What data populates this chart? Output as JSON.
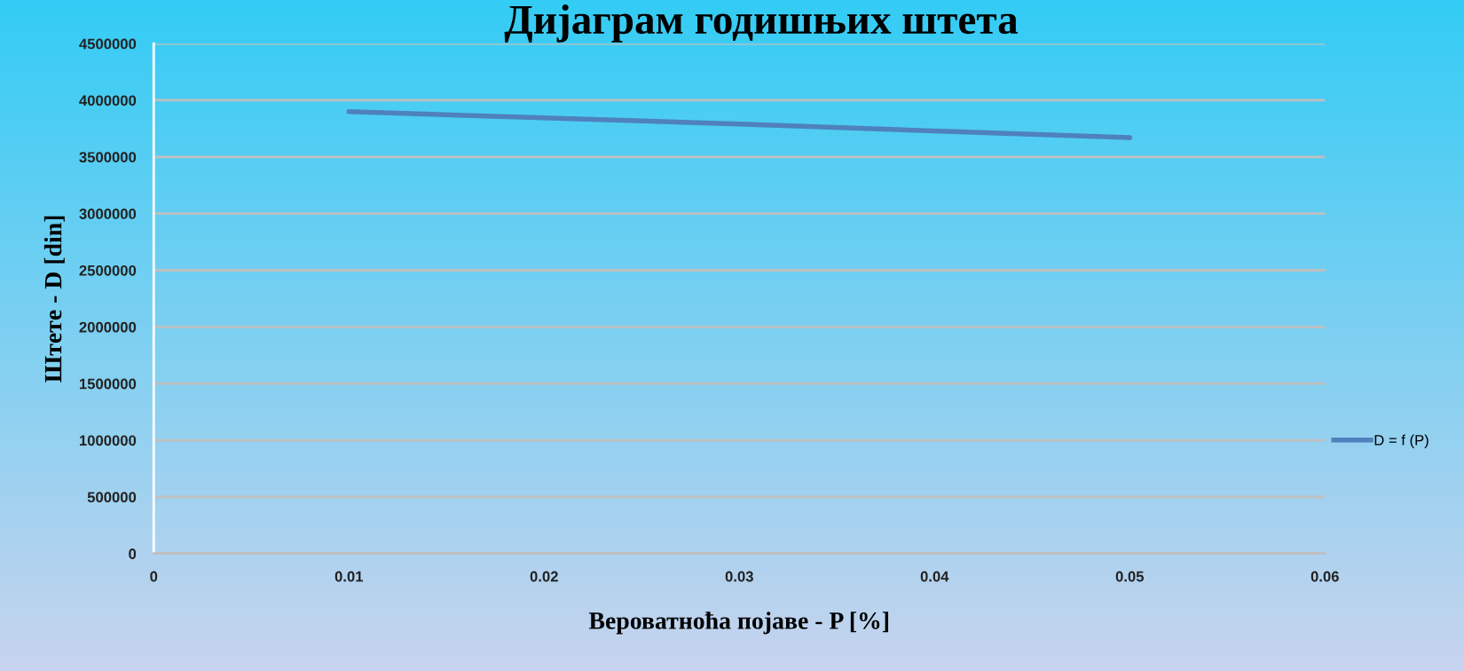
{
  "chart_data": {
    "type": "line",
    "title": "Дијаграм годишњих штета",
    "xlabel": "Вероватноћа појаве - P [%]",
    "ylabel": "Штете - D [din]",
    "x": [
      0.01,
      0.03,
      0.05
    ],
    "series": [
      {
        "name": "D = f (P)",
        "color": "#4f81bd",
        "values": [
          3900000,
          3790000,
          3670000
        ]
      }
    ],
    "xlim": [
      0,
      0.06
    ],
    "xticks": [
      0,
      0.01,
      0.02,
      0.03,
      0.04,
      0.05,
      0.06
    ],
    "ylim": [
      0,
      4500000
    ],
    "yticks": [
      0,
      500000,
      1000000,
      1500000,
      2000000,
      2500000,
      3000000,
      3500000,
      4000000,
      4500000
    ],
    "grid": "y",
    "legend": "right",
    "marker": "none",
    "line_style": "solid"
  }
}
